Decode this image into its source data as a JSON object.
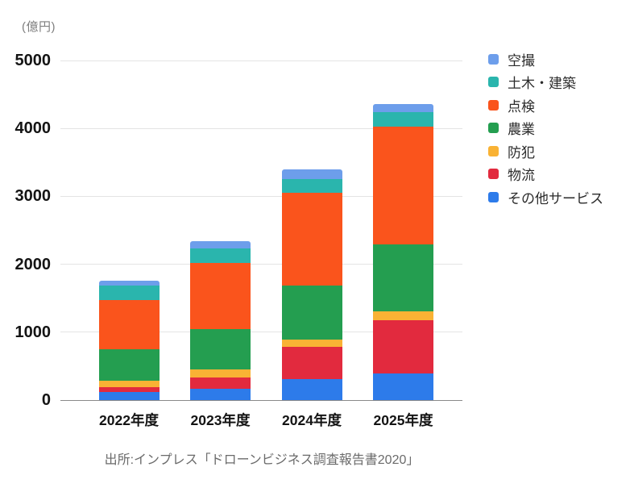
{
  "chart_data": {
    "type": "bar",
    "stacked": true,
    "title": "",
    "unit_label": "(億円)",
    "xlabel": "",
    "ylabel": "億円",
    "categories": [
      "2022年度",
      "2023年度",
      "2024年度",
      "2025年度"
    ],
    "series": [
      {
        "name": "その他サービス",
        "color": "#2d7bea",
        "values": [
          115,
          165,
          305,
          395
        ]
      },
      {
        "name": "物流",
        "color": "#e22a3e",
        "values": [
          80,
          170,
          475,
          785
        ]
      },
      {
        "name": "防犯",
        "color": "#f9b234",
        "values": [
          85,
          120,
          105,
          125
        ]
      },
      {
        "name": "農業",
        "color": "#249e50",
        "values": [
          470,
          585,
          800,
          985
        ]
      },
      {
        "name": "点検",
        "color": "#fa541c",
        "values": [
          720,
          980,
          1365,
          1730
        ]
      },
      {
        "name": "土木・建築",
        "color": "#2ab5ad",
        "values": [
          220,
          210,
          210,
          220
        ]
      },
      {
        "name": "空撮",
        "color": "#6d9eeb",
        "values": [
          70,
          105,
          135,
          120
        ]
      }
    ],
    "totals": [
      1760,
      2335,
      3395,
      4360
    ],
    "legend_order": [
      "空撮",
      "土木・建築",
      "点検",
      "農業",
      "防犯",
      "物流",
      "その他サービス"
    ],
    "legend_position": "right",
    "y_ticks": [
      0,
      1000,
      2000,
      3000,
      4000,
      5000
    ],
    "ylim": [
      0,
      5000
    ],
    "grid": true,
    "source": "出所:インプレス「ドローンビジネス調査報告書2020」"
  }
}
